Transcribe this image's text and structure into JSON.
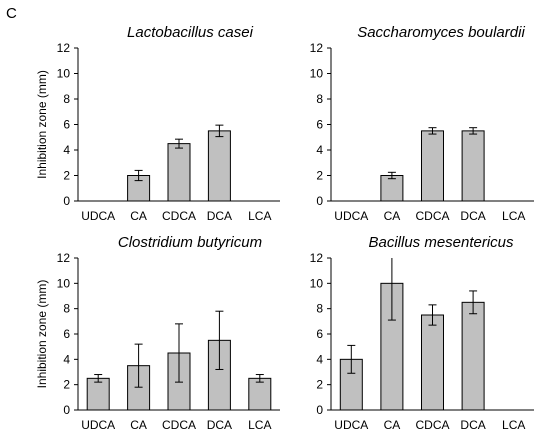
{
  "figure": {
    "panel_label": "C",
    "bar_color": "#c0c0c0",
    "axis_color": "#000000"
  },
  "chart_data": [
    {
      "type": "bar",
      "title": "Lactobacillus casei",
      "ylabel": "Inhibition zone (mm)",
      "xlabel": "",
      "categories": [
        "UDCA",
        "CA",
        "CDCA",
        "DCA",
        "LCA"
      ],
      "values": [
        null,
        2.0,
        4.5,
        5.5,
        null
      ],
      "errors": [
        null,
        0.4,
        0.35,
        0.45,
        null
      ],
      "ylim": [
        0,
        12
      ],
      "yticks": [
        0,
        2,
        4,
        6,
        8,
        10,
        12
      ],
      "grid": false
    },
    {
      "type": "bar",
      "title": "Saccharomyces boulardii",
      "ylabel": "",
      "xlabel": "",
      "categories": [
        "UDCA",
        "CA",
        "CDCA",
        "DCA",
        "LCA"
      ],
      "values": [
        null,
        2.0,
        5.5,
        5.5,
        null
      ],
      "errors": [
        null,
        0.25,
        0.25,
        0.25,
        null
      ],
      "ylim": [
        0,
        12
      ],
      "yticks": [
        0,
        2,
        4,
        6,
        8,
        10,
        12
      ],
      "grid": false
    },
    {
      "type": "bar",
      "title": "Clostridium butyricum",
      "ylabel": "Inhibition zone (mm)",
      "xlabel": "",
      "categories": [
        "UDCA",
        "CA",
        "CDCA",
        "DCA",
        "LCA"
      ],
      "values": [
        2.5,
        3.5,
        4.5,
        5.5,
        2.5
      ],
      "errors": [
        0.3,
        1.7,
        2.3,
        2.3,
        0.3
      ],
      "ylim": [
        0,
        12
      ],
      "yticks": [
        0,
        2,
        4,
        6,
        8,
        10,
        12
      ],
      "grid": false
    },
    {
      "type": "bar",
      "title": "Bacillus mesentericus",
      "ylabel": "",
      "xlabel": "",
      "categories": [
        "UDCA",
        "CA",
        "CDCA",
        "DCA",
        "LCA"
      ],
      "values": [
        4.0,
        10.0,
        7.5,
        8.5,
        null
      ],
      "errors": [
        1.1,
        2.9,
        0.8,
        0.9,
        null
      ],
      "ylim": [
        0,
        12
      ],
      "yticks": [
        0,
        2,
        4,
        6,
        8,
        10,
        12
      ],
      "grid": false
    }
  ]
}
